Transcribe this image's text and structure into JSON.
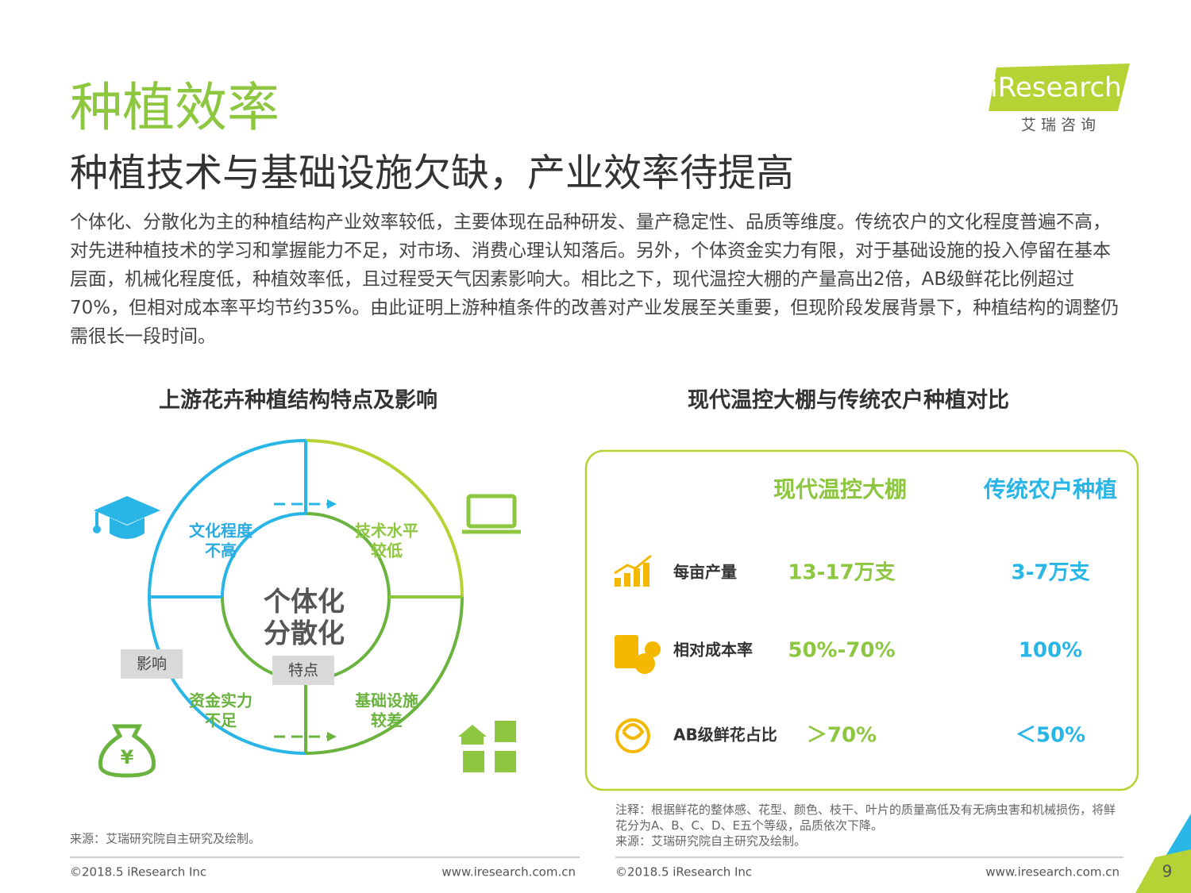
{
  "header": {
    "title": "种植效率",
    "subtitle": "种植技术与基础设施欠缺，产业效率待提高",
    "logo": "iResearch",
    "logo_sub": "艾 瑞 咨 询"
  },
  "body": "个体化、分散化为主的种植结构产业效率较低，主要体现在品种研发、量产稳定性、品质等维度。传统农户的文化程度普遍不高，对先进种植技术的学习和掌握能力不足，对市场、消费心理认知落后。另外，个体资金实力有限，对于基础设施的投入停留在基本层面，机械化程度低，种植效率低，且过程受天气因素影响大。相比之下，现代温控大棚的产量高出2倍，AB级鲜花比例超过70%，但相对成本率平均节约35%。由此证明上游种植条件的改善对产业发展至关重要，但现阶段发展背景下，种植结构的调整仍需很长一段时间。",
  "left": {
    "title": "上游花卉种植结构特点及影响",
    "center": [
      "个体化",
      "分散化"
    ],
    "quadrants": [
      [
        "文化程度",
        "不高"
      ],
      [
        "技术水平",
        "较低"
      ],
      [
        "资金实力",
        "不足"
      ],
      [
        "基础设施",
        "较差"
      ]
    ],
    "tag_impact": "影响",
    "tag_feature": "特点",
    "source": "来源：艾瑞研究院自主研究及绘制。"
  },
  "right": {
    "title": "现代温控大棚与传统农户种植对比",
    "columns": [
      "现代温控大棚",
      "传统农户种植"
    ],
    "rows": [
      [
        "每亩产量",
        "13-17万支",
        "3-7万支"
      ],
      [
        "相对成本率",
        "50%-70%",
        "100%"
      ],
      [
        "AB级鲜花占比",
        "＞70%",
        "＜50%"
      ]
    ],
    "note": "注释：根据鲜花的整体感、花型、颜色、枝干、叶片的质量高低及有无病虫害和机械损伤，将鲜花分为A、B、C、D、E五个等级，品质依次下降。",
    "source": "来源：艾瑞研究院自主研究及绘制。"
  },
  "footer": {
    "copyright_left": "©2018.5 iResearch Inc",
    "url_left": "www.iresearch.com.cn",
    "copyright_right": "©2018.5 iResearch Inc",
    "url_right": "www.iresearch.com.cn",
    "page": "9"
  }
}
